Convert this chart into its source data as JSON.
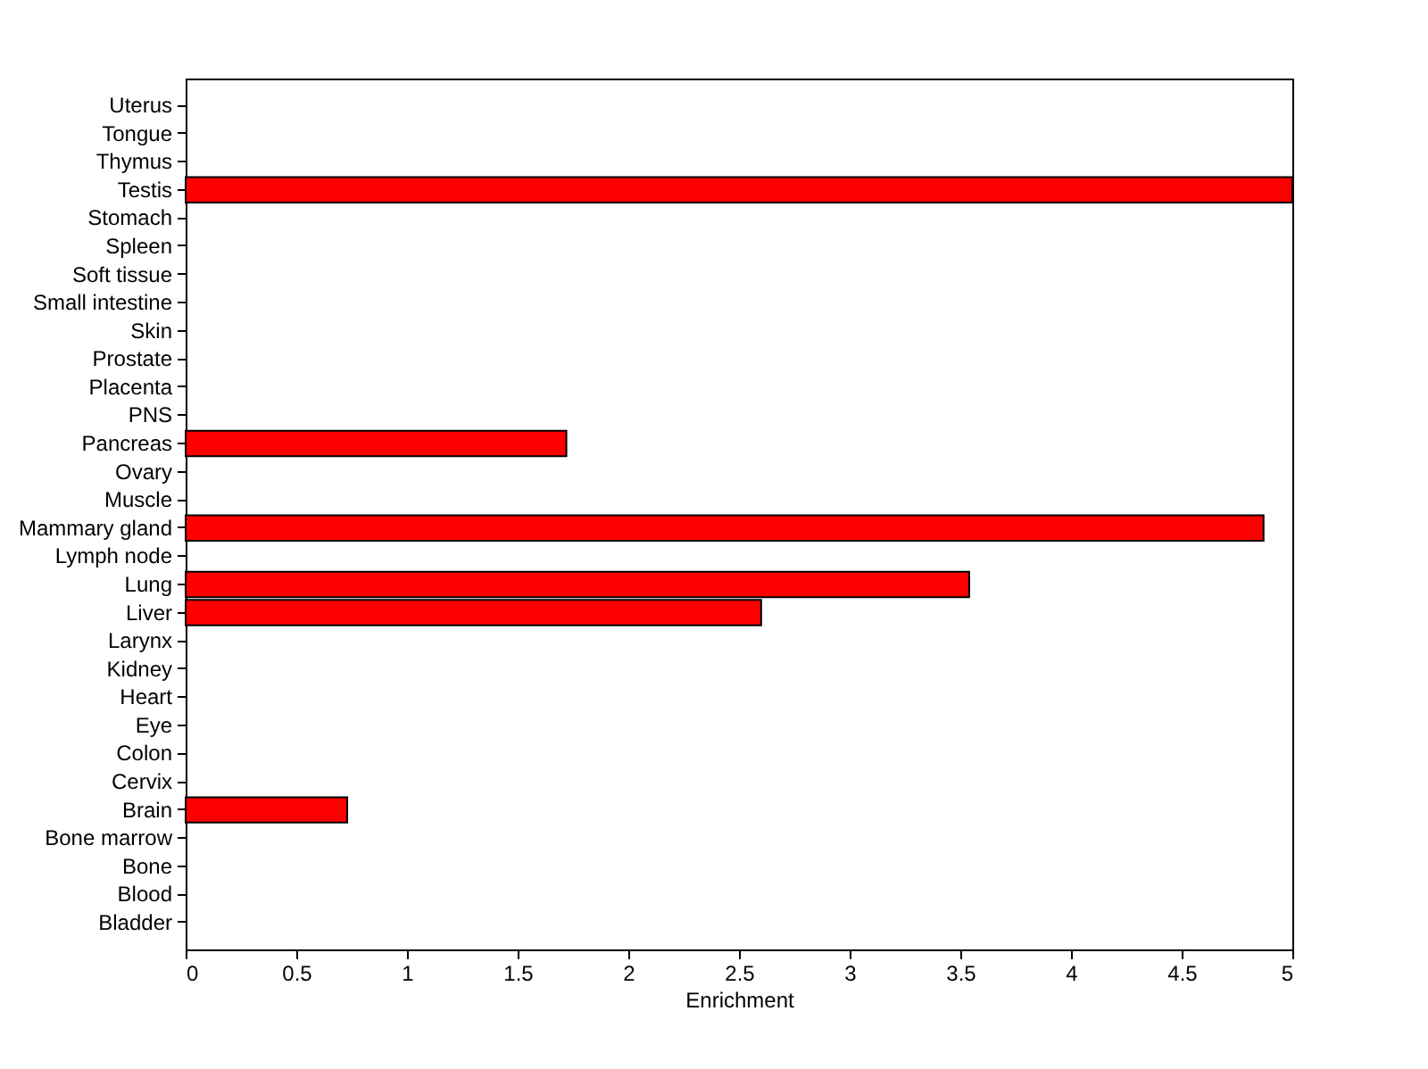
{
  "chart_data": {
    "type": "bar",
    "orientation": "horizontal",
    "xlabel": "Enrichment",
    "categories": [
      "Uterus",
      "Tongue",
      "Thymus",
      "Testis",
      "Stomach",
      "Spleen",
      "Soft tissue",
      "Small intestine",
      "Skin",
      "Prostate",
      "Placenta",
      "PNS",
      "Pancreas",
      "Ovary",
      "Muscle",
      "Mammary gland",
      "Lymph node",
      "Lung",
      "Liver",
      "Larynx",
      "Kidney",
      "Heart",
      "Eye",
      "Colon",
      "Cervix",
      "Brain",
      "Bone marrow",
      "Bone",
      "Blood",
      "Bladder"
    ],
    "values": [
      0,
      0,
      0,
      5,
      0,
      0,
      0,
      0,
      0,
      0,
      0,
      0,
      1.72,
      0,
      0,
      4.87,
      0,
      3.54,
      2.6,
      0,
      0,
      0,
      0,
      0,
      0,
      0.73,
      0,
      0,
      0,
      0
    ],
    "color": "#ff0000",
    "xlim": [
      0,
      5
    ],
    "xticks": [
      0,
      0.5,
      1,
      1.5,
      2,
      2.5,
      3,
      3.5,
      4,
      4.5,
      5
    ],
    "grid": false
  }
}
